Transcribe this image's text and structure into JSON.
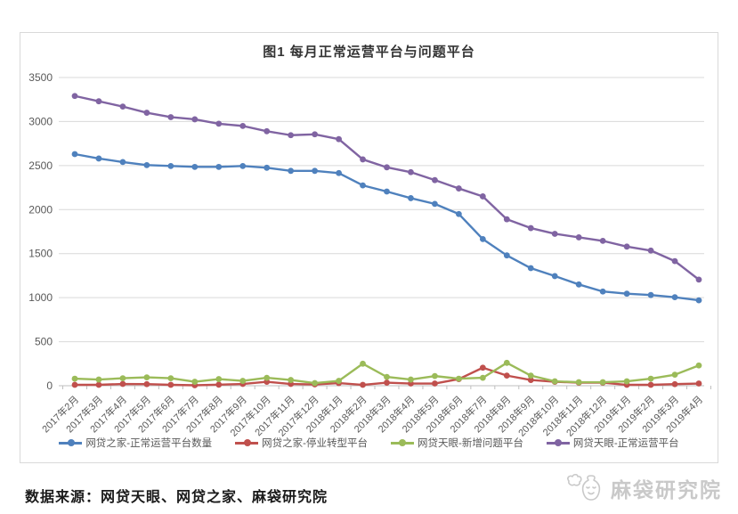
{
  "title": "图1  每月正常运营平台与问题平台",
  "source_note": "数据来源：网贷天眼、网贷之家、麻袋研究院",
  "watermark": "麻袋研究院",
  "colors": {
    "grid": "#d9d9d9",
    "axis": "#bfbfbf",
    "axis_text": "#595959",
    "title_text": "#333333",
    "series_blue": "#4F81BD",
    "series_red": "#C0504D",
    "series_green": "#9BBB59",
    "series_purple": "#8064A2"
  },
  "chart_data": {
    "type": "line",
    "title": "图1  每月正常运营平台与问题平台",
    "xlabel": "",
    "ylabel": "",
    "ylim": [
      0,
      3500
    ],
    "ytick_step": 500,
    "grid": true,
    "legend_position": "bottom",
    "categories": [
      "2017年2月",
      "2017年3月",
      "2017年4月",
      "2017年5月",
      "2017年6月",
      "2017年7月",
      "2017年8月",
      "2017年9月",
      "2017年10月",
      "2017年11月",
      "2017年12月",
      "2018年1月",
      "2018年2月",
      "2018年3月",
      "2018年4月",
      "2018年5月",
      "2018年6月",
      "2018年7月",
      "2018年8月",
      "2018年9月",
      "2018年10月",
      "2018年11月",
      "2018年12月",
      "2019年1月",
      "2019年2月",
      "2019年3月",
      "2019年4月"
    ],
    "series": [
      {
        "name": "网贷之家-正常运营平台数量",
        "color": "#4F81BD",
        "values": [
          2630,
          2580,
          2540,
          2505,
          2495,
          2485,
          2485,
          2495,
          2475,
          2440,
          2440,
          2415,
          2275,
          2205,
          2130,
          2065,
          1950,
          1665,
          1480,
          1335,
          1245,
          1150,
          1070,
          1045,
          1030,
          1005,
          970
        ]
      },
      {
        "name": "网贷之家-停业转型平台",
        "color": "#C0504D",
        "values": [
          10,
          10,
          20,
          18,
          10,
          5,
          12,
          20,
          45,
          20,
          15,
          30,
          10,
          35,
          25,
          25,
          75,
          205,
          115,
          65,
          45,
          35,
          35,
          10,
          10,
          18,
          25
        ]
      },
      {
        "name": "网贷天眼-新增问题平台",
        "color": "#9BBB59",
        "values": [
          80,
          70,
          85,
          95,
          85,
          45,
          75,
          55,
          90,
          65,
          30,
          55,
          250,
          100,
          70,
          110,
          80,
          90,
          260,
          115,
          50,
          40,
          40,
          50,
          80,
          125,
          230
        ]
      },
      {
        "name": "网贷天眼-正常运营平台",
        "color": "#8064A2",
        "values": [
          3290,
          3230,
          3170,
          3100,
          3050,
          3025,
          2975,
          2950,
          2890,
          2845,
          2855,
          2800,
          2570,
          2480,
          2425,
          2335,
          2240,
          2150,
          1890,
          1790,
          1725,
          1685,
          1645,
          1580,
          1535,
          1415,
          1205
        ]
      }
    ]
  }
}
